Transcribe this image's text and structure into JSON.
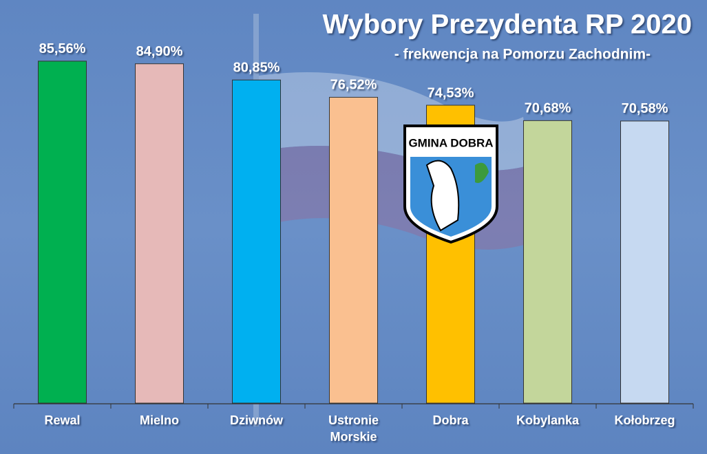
{
  "chart_data": {
    "type": "bar",
    "title": "Wybory Prezydenta RP 2020",
    "subtitle": "- frekwencja na Pomorzu Zachodnim-",
    "categories": [
      "Rewal",
      "Mielno",
      "Dziwnów",
      "Ustronie Morskie",
      "Dobra",
      "Kobylanka",
      "Kołobrzeg"
    ],
    "values": [
      85.56,
      84.9,
      80.85,
      76.52,
      74.53,
      70.68,
      70.58
    ],
    "value_labels": [
      "85,56%",
      "84,90%",
      "80,85%",
      "76,52%",
      "74,53%",
      "70,68%",
      "70,58%"
    ],
    "colors": [
      "#00b050",
      "#e6b9b8",
      "#00b0f0",
      "#fac090",
      "#ffc000",
      "#c3d69b",
      "#c6d9f1"
    ],
    "ylim": [
      0,
      100
    ]
  },
  "logo_text": "GMINA DOBRA"
}
